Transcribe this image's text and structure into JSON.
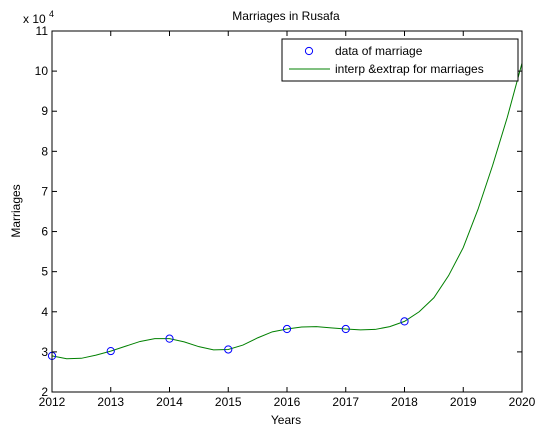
{
  "chart_data": {
    "type": "line",
    "title": "Marriages in Rusafa",
    "xlabel": "Years",
    "ylabel": "Marriages",
    "y_multiplier_label": "x 10",
    "y_multiplier_exponent": "4",
    "xlim": [
      2012,
      2020
    ],
    "ylim": [
      2,
      11
    ],
    "x_ticks": [
      2012,
      2013,
      2014,
      2015,
      2016,
      2017,
      2018,
      2019,
      2020
    ],
    "y_ticks": [
      2,
      3,
      4,
      5,
      6,
      7,
      8,
      9,
      10,
      11
    ],
    "grid": false,
    "legend_position": "top-right",
    "colors": {
      "markers": "#0000ff",
      "curve": "#008000",
      "axes": "#000000",
      "background": "#ffffff"
    },
    "series": [
      {
        "name": "data of marriage",
        "style": "markers",
        "marker": "circle",
        "x": [
          2012,
          2013,
          2014,
          2015,
          2016,
          2017,
          2018
        ],
        "y": [
          2.9,
          3.02,
          3.33,
          3.06,
          3.57,
          3.57,
          3.76
        ]
      },
      {
        "name": "interp &extrap for marriages",
        "style": "line",
        "x": [
          2012,
          2012.25,
          2012.5,
          2012.75,
          2013,
          2013.25,
          2013.5,
          2013.75,
          2014,
          2014.25,
          2014.5,
          2014.75,
          2015,
          2015.25,
          2015.5,
          2015.75,
          2016,
          2016.25,
          2016.5,
          2016.75,
          2017,
          2017.25,
          2017.5,
          2017.75,
          2018,
          2018.25,
          2018.5,
          2018.75,
          2019,
          2019.25,
          2019.5,
          2019.75,
          2020
        ],
        "y": [
          2.9,
          2.83,
          2.84,
          2.92,
          3.02,
          3.14,
          3.26,
          3.33,
          3.33,
          3.25,
          3.13,
          3.05,
          3.06,
          3.17,
          3.35,
          3.5,
          3.57,
          3.62,
          3.63,
          3.6,
          3.57,
          3.55,
          3.56,
          3.63,
          3.76,
          4.0,
          4.35,
          4.9,
          5.6,
          6.55,
          7.65,
          8.85,
          10.2
        ]
      }
    ]
  }
}
